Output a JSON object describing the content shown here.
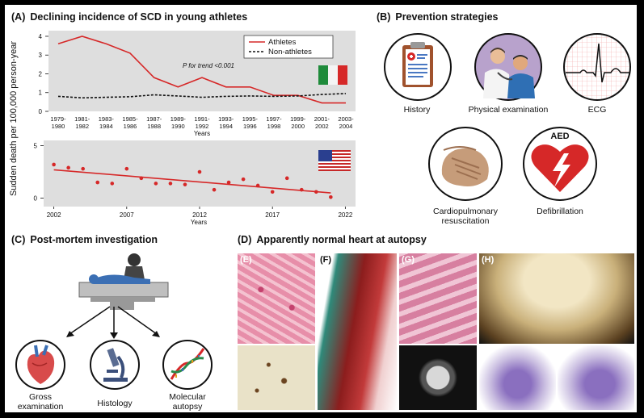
{
  "panels": {
    "a": {
      "letter": "(A)",
      "title": "Declining incidence of SCD in young athletes"
    },
    "b": {
      "letter": "(B)",
      "title": "Prevention strategies"
    },
    "c": {
      "letter": "(C)",
      "title": "Post-mortem investigation"
    },
    "d": {
      "letter": "(D)",
      "title": "Apparently normal heart at autopsy"
    }
  },
  "prevention": {
    "history": "History",
    "physical": "Physical examination",
    "ecg": "ECG",
    "cpr_line1": "Cardiopulmonary",
    "cpr_line2": "resuscitation",
    "defib": "Defibrillation",
    "aed": "AED"
  },
  "postmortem": {
    "gross_line1": "Gross",
    "gross_line2": "examination",
    "histology": "Histology",
    "molecular_line1": "Molecular",
    "molecular_line2": "autopsy"
  },
  "autopsy_images": {
    "e": "(E)",
    "f": "(F)",
    "g": "(G)",
    "h": "(H)"
  },
  "chart_data": [
    {
      "type": "line",
      "ylabel": "Sudden death per 100,000 person-year",
      "xlabel": "Years",
      "categories": [
        "1979-1980",
        "1981-1982",
        "1983-1984",
        "1985-1986",
        "1987-1988",
        "1989-1990",
        "1991-1992",
        "1993-1994",
        "1995-1996",
        "1997-1998",
        "1999-2000",
        "2001-2002",
        "2003-2004"
      ],
      "series": [
        {
          "name": "Athletes",
          "color": "#d62828",
          "style": "solid",
          "values": [
            3.6,
            4.0,
            3.6,
            3.1,
            1.8,
            1.3,
            1.8,
            1.3,
            1.3,
            0.85,
            0.85,
            0.45,
            0.45
          ]
        },
        {
          "name": "Non-athletes",
          "color": "#111111",
          "style": "dashed",
          "values": [
            0.8,
            0.72,
            0.75,
            0.78,
            0.88,
            0.82,
            0.75,
            0.8,
            0.82,
            0.8,
            0.82,
            0.9,
            0.95
          ]
        }
      ],
      "annotation": "P for trend <0.001",
      "ylim": [
        0,
        4.3
      ],
      "yticks": [
        0,
        1,
        2,
        3,
        4
      ],
      "flag": "italy",
      "legend": "top-right",
      "background": "#dedede"
    },
    {
      "type": "scatter",
      "xlabel": "Years",
      "x": [
        2002,
        2003,
        2004,
        2005,
        2006,
        2007,
        2008,
        2009,
        2010,
        2011,
        2012,
        2013,
        2014,
        2015,
        2016,
        2017,
        2018,
        2019,
        2020,
        2021
      ],
      "y": [
        3.2,
        2.9,
        2.8,
        1.5,
        1.4,
        2.8,
        1.9,
        1.4,
        1.4,
        1.3,
        2.5,
        0.8,
        1.5,
        1.8,
        1.2,
        0.6,
        1.9,
        0.8,
        0.6,
        0.1
      ],
      "trend": [
        [
          2002,
          2.7
        ],
        [
          2021,
          0.5
        ]
      ],
      "color": "#d62828",
      "xticks": [
        2002,
        2007,
        2012,
        2017,
        2022
      ],
      "yticks": [
        0,
        5
      ],
      "ylim": [
        -0.8,
        5.5
      ],
      "xlim": [
        2001.3,
        2022.7
      ],
      "flag": "usa",
      "background": "#dedede"
    }
  ]
}
